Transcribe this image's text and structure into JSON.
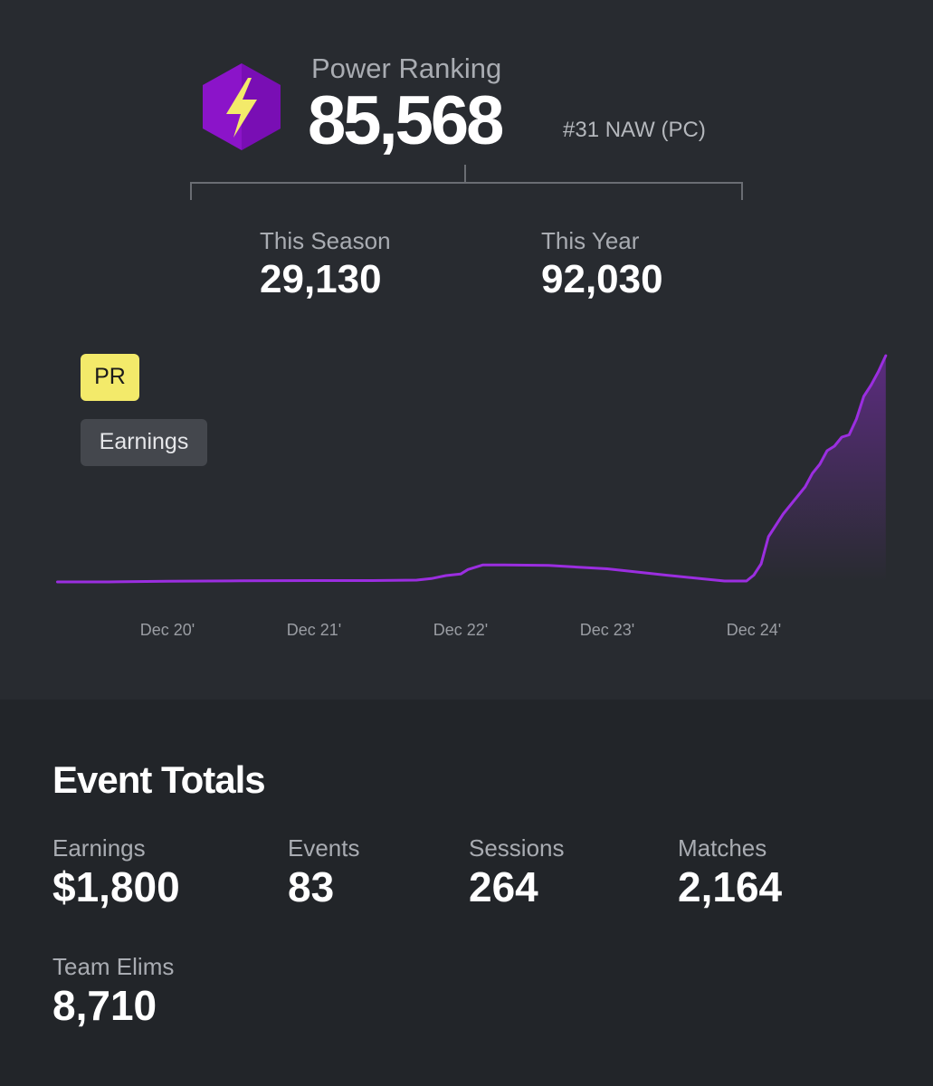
{
  "power_ranking": {
    "label": "Power Ranking",
    "value": "85,568",
    "rank": "#31 NAW (PC)",
    "icon": "lightning-hexagon-icon",
    "icon_color": "#8b14c9",
    "bolt_color": "#f3ea6a"
  },
  "season": {
    "label": "This Season",
    "value": "29,130"
  },
  "year": {
    "label": "This Year",
    "value": "92,030"
  },
  "toggles": {
    "pr": "PR",
    "earnings": "Earnings",
    "active": "PR",
    "active_color": "#f3ea6a"
  },
  "chart_data": {
    "type": "line",
    "line_color": "#9b2ee0",
    "x_labels": [
      "Dec 20'",
      "Dec 21'",
      "Dec 22'",
      "Dec 23'",
      "Dec 24'"
    ],
    "ylim": [
      0,
      100
    ],
    "series": [
      {
        "values": [
          [
            19.25,
            0
          ],
          [
            19.6,
            0
          ],
          [
            20.0,
            0.3
          ],
          [
            20.5,
            0.5
          ],
          [
            21.0,
            0.6
          ],
          [
            21.4,
            0.6
          ],
          [
            21.7,
            0.8
          ],
          [
            21.8,
            1.5
          ],
          [
            21.9,
            2.8
          ],
          [
            22.0,
            3.5
          ],
          [
            22.05,
            5.5
          ],
          [
            22.15,
            7.5
          ],
          [
            22.3,
            7.5
          ],
          [
            22.6,
            7.3
          ],
          [
            23.0,
            5.8
          ],
          [
            23.4,
            3.0
          ],
          [
            23.8,
            0.4
          ],
          [
            23.95,
            0.4
          ],
          [
            24.0,
            3
          ],
          [
            24.05,
            8
          ],
          [
            24.1,
            20
          ],
          [
            24.15,
            25
          ],
          [
            24.2,
            30
          ],
          [
            24.3,
            38
          ],
          [
            24.35,
            42
          ],
          [
            24.4,
            48
          ],
          [
            24.45,
            52
          ],
          [
            24.5,
            58
          ],
          [
            24.55,
            60
          ],
          [
            24.6,
            64
          ],
          [
            24.65,
            65
          ],
          [
            24.7,
            72
          ],
          [
            24.75,
            82
          ],
          [
            24.8,
            87
          ],
          [
            24.85,
            93
          ],
          [
            24.9,
            100
          ]
        ]
      }
    ]
  },
  "event_totals": {
    "title": "Event Totals",
    "stats": [
      {
        "label": "Earnings",
        "value": "$1,800"
      },
      {
        "label": "Events",
        "value": "83"
      },
      {
        "label": "Sessions",
        "value": "264"
      },
      {
        "label": "Matches",
        "value": "2,164"
      },
      {
        "label": "Team Elims",
        "value": "8,710"
      }
    ]
  }
}
